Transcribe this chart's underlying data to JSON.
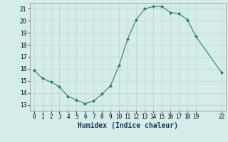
{
  "x": [
    0,
    1,
    2,
    3,
    4,
    5,
    6,
    7,
    8,
    9,
    10,
    11,
    12,
    13,
    14,
    15,
    16,
    17,
    18,
    19,
    22
  ],
  "y": [
    15.9,
    15.2,
    14.9,
    14.5,
    13.7,
    13.4,
    13.1,
    13.3,
    13.9,
    14.6,
    16.3,
    18.5,
    20.1,
    21.0,
    21.2,
    21.2,
    20.7,
    20.6,
    20.1,
    18.7,
    15.7
  ],
  "line_color": "#2e7d6e",
  "marker": "D",
  "marker_size": 2.0,
  "bg_color": "#d4ecea",
  "grid_color": "#b8d4d0",
  "xlabel": "Humidex (Indice chaleur)",
  "xlim": [
    -0.5,
    22.5
  ],
  "ylim": [
    12.5,
    21.5
  ],
  "xticks": [
    0,
    1,
    2,
    3,
    4,
    5,
    6,
    7,
    8,
    9,
    10,
    11,
    12,
    13,
    14,
    15,
    16,
    17,
    18,
    19,
    22
  ],
  "yticks": [
    13,
    14,
    15,
    16,
    17,
    18,
    19,
    20,
    21
  ],
  "tick_fontsize": 5.5,
  "xlabel_fontsize": 7
}
